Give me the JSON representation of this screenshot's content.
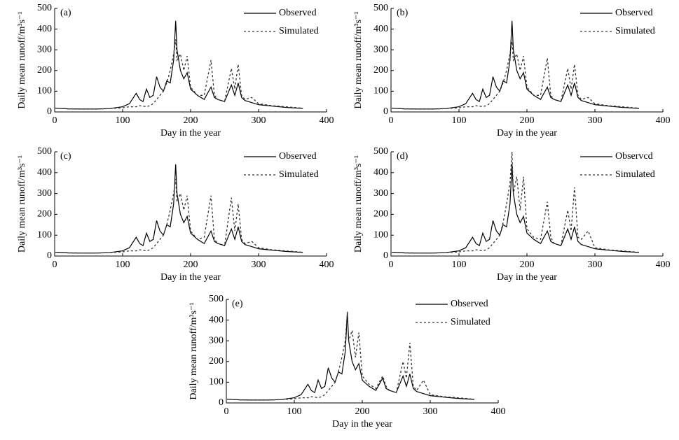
{
  "chart_data": [
    {
      "type": "line",
      "title": "(a)",
      "x_label": "Day in the year",
      "y_label": "Daily mean runoff/m³s⁻¹",
      "xlim": [
        0,
        400
      ],
      "ylim": [
        0,
        500
      ],
      "xticks": [
        0,
        100,
        200,
        300,
        400
      ],
      "yticks": [
        0,
        100,
        200,
        300,
        400,
        500
      ],
      "x": [
        1,
        20,
        40,
        60,
        80,
        100,
        110,
        120,
        125,
        130,
        135,
        140,
        145,
        150,
        155,
        160,
        165,
        170,
        175,
        178,
        180,
        185,
        190,
        195,
        200,
        210,
        220,
        230,
        235,
        240,
        250,
        260,
        265,
        270,
        275,
        280,
        290,
        300,
        320,
        340,
        365
      ],
      "series": [
        {
          "name": "Observed",
          "color": "#000000",
          "values": [
            18,
            15,
            14,
            14,
            16,
            25,
            40,
            90,
            60,
            50,
            110,
            70,
            80,
            170,
            120,
            100,
            150,
            140,
            250,
            440,
            300,
            200,
            160,
            190,
            110,
            80,
            60,
            120,
            70,
            60,
            50,
            130,
            80,
            140,
            70,
            55,
            45,
            35,
            28,
            22,
            17
          ]
        },
        {
          "name": "Simulated",
          "color": "#333333",
          "values": [
            18,
            15,
            14,
            14,
            16,
            20,
            25,
            25,
            30,
            28,
            25,
            30,
            40,
            60,
            80,
            100,
            140,
            200,
            280,
            350,
            250,
            280,
            200,
            270,
            120,
            80,
            80,
            250,
            80,
            60,
            50,
            210,
            110,
            230,
            80,
            60,
            70,
            40,
            30,
            25,
            18
          ]
        }
      ]
    },
    {
      "type": "line",
      "title": "(b)",
      "x_label": "Day in the year",
      "y_label": "Daily mean runoff/m³s⁻¹",
      "xlim": [
        0,
        400
      ],
      "ylim": [
        0,
        500
      ],
      "xticks": [
        0,
        100,
        200,
        300,
        400
      ],
      "yticks": [
        0,
        100,
        200,
        300,
        400,
        500
      ],
      "x": [
        1,
        20,
        40,
        60,
        80,
        100,
        110,
        120,
        125,
        130,
        135,
        140,
        145,
        150,
        155,
        160,
        165,
        170,
        175,
        178,
        180,
        185,
        190,
        195,
        200,
        210,
        220,
        230,
        235,
        240,
        250,
        260,
        265,
        270,
        275,
        280,
        290,
        300,
        320,
        340,
        365
      ],
      "series": [
        {
          "name": "Observed",
          "color": "#000000",
          "values": [
            18,
            15,
            14,
            14,
            16,
            25,
            40,
            90,
            60,
            50,
            110,
            70,
            80,
            170,
            120,
            100,
            150,
            140,
            250,
            440,
            300,
            200,
            160,
            190,
            110,
            80,
            60,
            120,
            70,
            60,
            50,
            130,
            80,
            140,
            70,
            55,
            45,
            35,
            28,
            22,
            17
          ]
        },
        {
          "name": "Simulated",
          "color": "#333333",
          "values": [
            18,
            15,
            14,
            14,
            16,
            20,
            25,
            25,
            30,
            28,
            25,
            30,
            40,
            60,
            80,
            100,
            140,
            200,
            280,
            340,
            250,
            280,
            200,
            270,
            120,
            80,
            80,
            260,
            80,
            60,
            50,
            210,
            110,
            230,
            80,
            60,
            70,
            40,
            30,
            25,
            18
          ]
        }
      ]
    },
    {
      "type": "line",
      "title": "(c)",
      "x_label": "Day in the year",
      "y_label": "Daily mean runoff/m³s⁻¹",
      "xlim": [
        0,
        400
      ],
      "ylim": [
        0,
        500
      ],
      "xticks": [
        0,
        100,
        200,
        300,
        400
      ],
      "yticks": [
        0,
        100,
        200,
        300,
        400,
        500
      ],
      "x": [
        1,
        20,
        40,
        60,
        80,
        100,
        110,
        120,
        125,
        130,
        135,
        140,
        145,
        150,
        155,
        160,
        165,
        170,
        175,
        178,
        180,
        185,
        190,
        195,
        200,
        210,
        220,
        230,
        235,
        240,
        250,
        260,
        265,
        270,
        275,
        280,
        290,
        300,
        320,
        340,
        365
      ],
      "series": [
        {
          "name": "Observed",
          "color": "#000000",
          "values": [
            18,
            15,
            14,
            14,
            16,
            25,
            40,
            90,
            60,
            50,
            110,
            70,
            80,
            170,
            120,
            100,
            150,
            140,
            250,
            440,
            300,
            200,
            160,
            190,
            110,
            80,
            60,
            120,
            70,
            60,
            50,
            130,
            80,
            140,
            70,
            55,
            45,
            35,
            28,
            22,
            17
          ]
        },
        {
          "name": "Simulated",
          "color": "#333333",
          "values": [
            18,
            15,
            14,
            14,
            16,
            20,
            25,
            25,
            30,
            28,
            25,
            30,
            40,
            60,
            80,
            100,
            150,
            220,
            300,
            370,
            260,
            300,
            220,
            290,
            120,
            80,
            90,
            290,
            80,
            60,
            50,
            280,
            120,
            250,
            80,
            60,
            70,
            40,
            30,
            25,
            18
          ]
        }
      ]
    },
    {
      "type": "line",
      "title": "(d)",
      "x_label": "Day in the year",
      "y_label": "Daily mean runoff/m³s⁻¹",
      "xlim": [
        0,
        400
      ],
      "ylim": [
        0,
        500
      ],
      "xticks": [
        0,
        100,
        200,
        300,
        400
      ],
      "yticks": [
        0,
        100,
        200,
        300,
        400,
        500
      ],
      "x": [
        1,
        20,
        40,
        60,
        80,
        100,
        110,
        120,
        125,
        130,
        135,
        140,
        145,
        150,
        155,
        160,
        165,
        170,
        175,
        178,
        180,
        185,
        190,
        195,
        200,
        210,
        220,
        230,
        235,
        240,
        250,
        260,
        265,
        270,
        275,
        280,
        290,
        300,
        320,
        340,
        365
      ],
      "series": [
        {
          "name": "Observcd",
          "color": "#000000",
          "values": [
            18,
            15,
            14,
            14,
            16,
            25,
            40,
            90,
            60,
            50,
            110,
            70,
            80,
            170,
            120,
            100,
            150,
            140,
            250,
            440,
            300,
            200,
            160,
            190,
            110,
            80,
            60,
            120,
            70,
            60,
            50,
            130,
            80,
            140,
            70,
            55,
            45,
            35,
            28,
            22,
            17
          ]
        },
        {
          "name": "Simulated",
          "color": "#333333",
          "values": [
            18,
            15,
            14,
            14,
            16,
            20,
            25,
            25,
            30,
            28,
            25,
            30,
            40,
            60,
            80,
            100,
            160,
            250,
            350,
            500,
            300,
            380,
            220,
            380,
            130,
            90,
            80,
            260,
            90,
            60,
            50,
            220,
            120,
            330,
            90,
            80,
            120,
            40,
            30,
            25,
            18
          ]
        }
      ]
    },
    {
      "type": "line",
      "title": "(e)",
      "x_label": "Day in the year",
      "y_label": "Daily mean runoff/m³s⁻¹",
      "xlim": [
        0,
        400
      ],
      "ylim": [
        0,
        500
      ],
      "xticks": [
        0,
        100,
        200,
        300,
        400
      ],
      "yticks": [
        0,
        100,
        200,
        300,
        400,
        500
      ],
      "x": [
        1,
        20,
        40,
        60,
        80,
        100,
        110,
        120,
        125,
        130,
        135,
        140,
        145,
        150,
        155,
        160,
        165,
        170,
        175,
        178,
        180,
        185,
        190,
        195,
        200,
        210,
        220,
        230,
        235,
        240,
        250,
        260,
        265,
        270,
        275,
        280,
        290,
        300,
        320,
        340,
        365
      ],
      "series": [
        {
          "name": "Observed",
          "color": "#000000",
          "values": [
            18,
            15,
            14,
            14,
            16,
            25,
            40,
            90,
            60,
            50,
            110,
            70,
            80,
            170,
            120,
            100,
            150,
            140,
            250,
            440,
            300,
            200,
            160,
            190,
            110,
            80,
            60,
            120,
            70,
            60,
            50,
            130,
            80,
            140,
            70,
            55,
            45,
            35,
            28,
            22,
            17
          ]
        },
        {
          "name": "Simulated",
          "color": "#333333",
          "values": [
            18,
            15,
            14,
            14,
            16,
            20,
            25,
            25,
            30,
            28,
            25,
            30,
            40,
            60,
            80,
            100,
            150,
            220,
            300,
            440,
            300,
            350,
            220,
            340,
            130,
            90,
            70,
            130,
            80,
            60,
            50,
            200,
            120,
            290,
            80,
            60,
            110,
            40,
            30,
            25,
            18
          ]
        }
      ]
    }
  ]
}
